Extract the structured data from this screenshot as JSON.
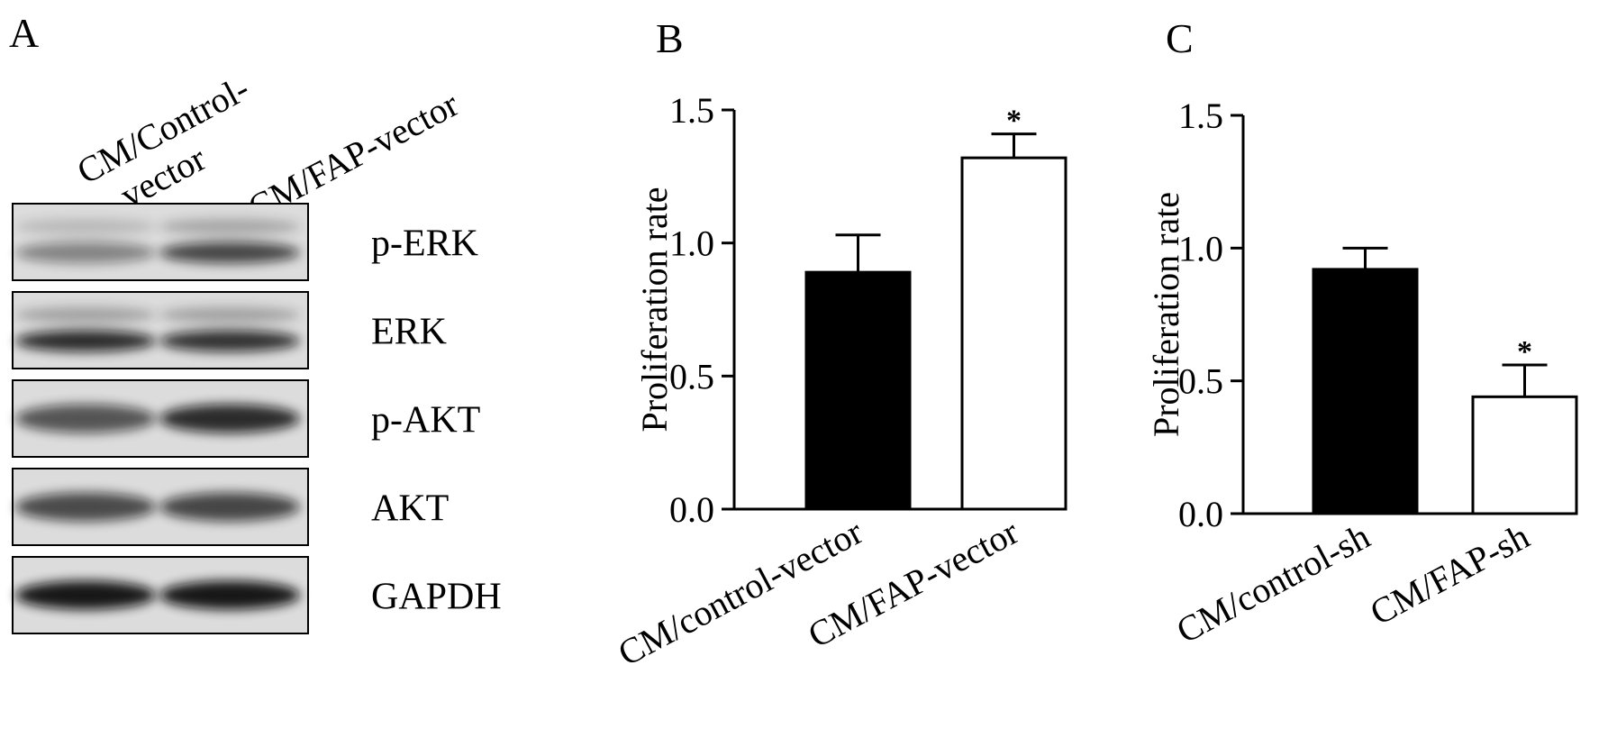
{
  "panels": {
    "A": {
      "letter": "A",
      "lanes": [
        "CM/Control-\nvector",
        "CM/FAP-vector"
      ],
      "blots": [
        {
          "label": "p-ERK",
          "upper_band": [
            0.18,
            0.28
          ],
          "lower_band": [
            0.42,
            0.72
          ]
        },
        {
          "label": "ERK",
          "upper_band": [
            0.3,
            0.3
          ],
          "lower_band": [
            0.85,
            0.82
          ]
        },
        {
          "label": "p-AKT",
          "upper_band": [
            0.65,
            0.85
          ],
          "lower_band": [
            0,
            0
          ]
        },
        {
          "label": "AKT",
          "upper_band": [
            0.7,
            0.72
          ],
          "lower_band": [
            0,
            0
          ]
        },
        {
          "label": "GAPDH",
          "upper_band": [
            0.95,
            0.95
          ],
          "lower_band": [
            0,
            0
          ]
        }
      ]
    },
    "B": {
      "letter": "B"
    },
    "C": {
      "letter": "C"
    }
  },
  "chart_data": [
    {
      "panel": "B",
      "type": "bar",
      "categories": [
        "CM/control-vector",
        "CM/FAP-vector"
      ],
      "values": [
        0.89,
        1.32
      ],
      "errors": [
        0.14,
        0.09
      ],
      "bar_colors": [
        "#000000",
        "#ffffff"
      ],
      "significance": [
        "",
        "*"
      ],
      "ylabel": "Proliferation rate",
      "ylim": [
        0,
        1.5
      ],
      "yticks": [
        0.0,
        0.5,
        1.0,
        1.5
      ],
      "ytick_labels": [
        "0.0",
        "0.5",
        "1.0",
        "1.5"
      ],
      "grid": false
    },
    {
      "panel": "C",
      "type": "bar",
      "categories": [
        "CM/control-sh",
        "CM/FAP-sh"
      ],
      "values": [
        0.92,
        0.44
      ],
      "errors": [
        0.08,
        0.12
      ],
      "bar_colors": [
        "#000000",
        "#ffffff"
      ],
      "significance": [
        "",
        "*"
      ],
      "ylabel": "Proliferation rate",
      "ylim": [
        0,
        1.5
      ],
      "yticks": [
        0.0,
        0.5,
        1.0,
        1.5
      ],
      "ytick_labels": [
        "0.0",
        "0.5",
        "1.0",
        "1.5"
      ],
      "grid": false
    }
  ]
}
